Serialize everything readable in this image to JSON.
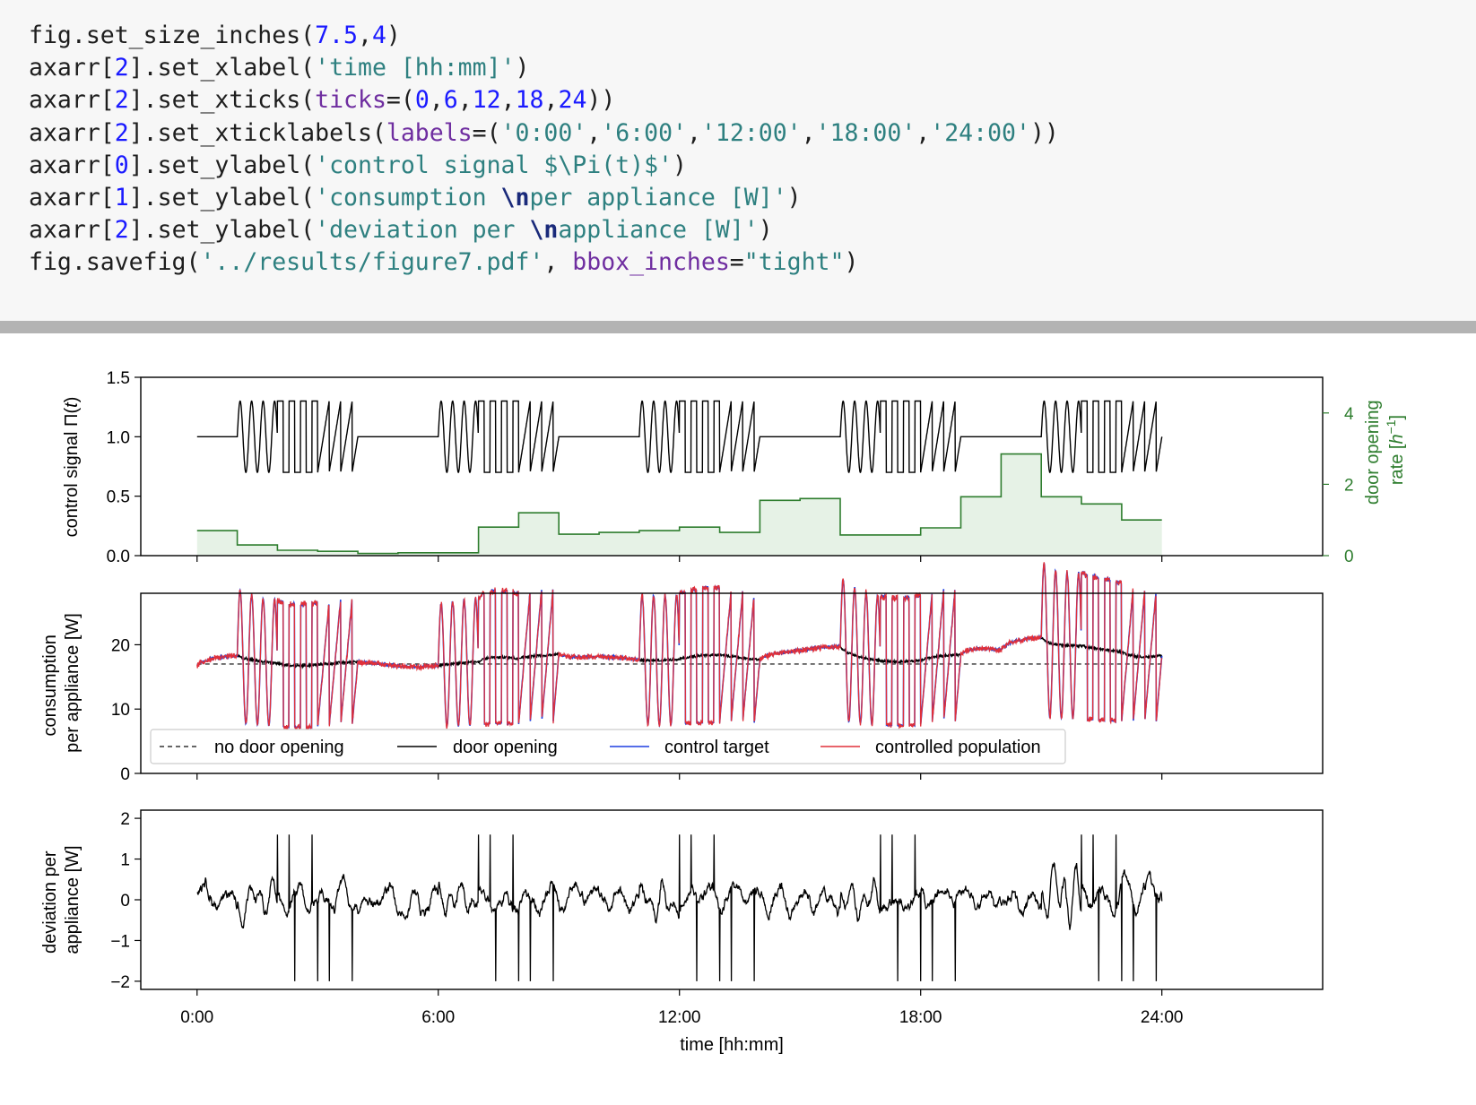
{
  "code_cell": {
    "lines": [
      [
        {
          "t": "fig.set_size_inches("
        },
        {
          "t": "7.5",
          "c": "num"
        },
        {
          "t": ","
        },
        {
          "t": "4",
          "c": "num"
        },
        {
          "t": ")"
        }
      ],
      [
        {
          "t": "axarr["
        },
        {
          "t": "2",
          "c": "num"
        },
        {
          "t": "].set_xlabel("
        },
        {
          "t": "'time [hh:mm]'",
          "c": "str"
        },
        {
          "t": ")"
        }
      ],
      [
        {
          "t": "axarr["
        },
        {
          "t": "2",
          "c": "num"
        },
        {
          "t": "].set_xticks("
        },
        {
          "t": "ticks",
          "c": "kw"
        },
        {
          "t": "=("
        },
        {
          "t": "0",
          "c": "num"
        },
        {
          "t": ","
        },
        {
          "t": "6",
          "c": "num"
        },
        {
          "t": ","
        },
        {
          "t": "12",
          "c": "num"
        },
        {
          "t": ","
        },
        {
          "t": "18",
          "c": "num"
        },
        {
          "t": ","
        },
        {
          "t": "24",
          "c": "num"
        },
        {
          "t": "))"
        }
      ],
      [
        {
          "t": "axarr["
        },
        {
          "t": "2",
          "c": "num"
        },
        {
          "t": "].set_xticklabels("
        },
        {
          "t": "labels",
          "c": "kw"
        },
        {
          "t": "=("
        },
        {
          "t": "'0:00'",
          "c": "str"
        },
        {
          "t": ","
        },
        {
          "t": "'6:00'",
          "c": "str"
        },
        {
          "t": ","
        },
        {
          "t": "'12:00'",
          "c": "str"
        },
        {
          "t": ","
        },
        {
          "t": "'18:00'",
          "c": "str"
        },
        {
          "t": ","
        },
        {
          "t": "'24:00'",
          "c": "str"
        },
        {
          "t": "))"
        }
      ],
      [
        {
          "t": "axarr["
        },
        {
          "t": "0",
          "c": "num"
        },
        {
          "t": "].set_ylabel("
        },
        {
          "t": "'control signal $\\Pi(t)$'",
          "c": "str"
        },
        {
          "t": ")"
        }
      ],
      [
        {
          "t": "axarr["
        },
        {
          "t": "1",
          "c": "num"
        },
        {
          "t": "].set_ylabel("
        },
        {
          "t": "'consumption ",
          "c": "str"
        },
        {
          "t": "\\n",
          "c": "esc"
        },
        {
          "t": "per appliance [W]'",
          "c": "str"
        },
        {
          "t": ")"
        }
      ],
      [
        {
          "t": "axarr["
        },
        {
          "t": "2",
          "c": "num"
        },
        {
          "t": "].set_ylabel("
        },
        {
          "t": "'deviation per ",
          "c": "str"
        },
        {
          "t": "\\n",
          "c": "esc"
        },
        {
          "t": "appliance [W]'",
          "c": "str"
        },
        {
          "t": ")"
        }
      ],
      [
        {
          "t": "fig.savefig("
        },
        {
          "t": "'../results/figure7.pdf'",
          "c": "str"
        },
        {
          "t": ", "
        },
        {
          "t": "bbox_inches",
          "c": "kw"
        },
        {
          "t": "="
        },
        {
          "t": "\"tight\"",
          "c": "str"
        },
        {
          "t": ")"
        }
      ]
    ]
  },
  "colors": {
    "signal": "#000000",
    "door_rate": "#2e7d2e",
    "door_fill": "#e6f2e6",
    "control_target": "#1f3fe0",
    "controlled_population": "#e0303a",
    "no_door_opening": "#333333"
  },
  "chart_data": [
    {
      "type": "line",
      "panel": "control signal",
      "ylabel": "control signal Π(t)",
      "ylabel_plain": "control signal Π(",
      "ylabel_var": "t",
      "ylabel_close": ")",
      "xlim": [
        -1.4,
        28.0
      ],
      "ylim": [
        0,
        1.5
      ],
      "yticks": [
        0.0,
        0.5,
        1.0,
        1.5
      ],
      "ytick_labels": [
        "0.0",
        "0.5",
        "1.0",
        "1.5"
      ],
      "xticks": [
        0,
        6,
        12,
        18,
        24
      ],
      "series": [
        {
          "name": "control signal",
          "pattern": "per 5 h block: 1.0 baseline, sine burst, square burst, sawtooth burst; amplitude 0.3",
          "block_starts": [
            0,
            5,
            10,
            15,
            20
          ],
          "baseline": 1.0,
          "amplitude": 0.3
        }
      ],
      "secondary_axis": {
        "ylabel": "door opening rate [h⁻¹]",
        "ylabel_line1": "door opening",
        "ylabel_line2": "rate [",
        "ylim": [
          0,
          5
        ],
        "yticks": [
          0,
          2,
          4
        ],
        "ytick_labels": [
          "0",
          "2",
          "4"
        ],
        "step_hours": [
          0,
          1,
          2,
          3,
          4,
          5,
          6,
          7,
          8,
          9,
          10,
          11,
          12,
          13,
          14,
          15,
          16,
          17,
          18,
          19,
          20,
          21,
          22,
          23
        ],
        "step_values": [
          0.7,
          0.3,
          0.15,
          0.12,
          0.06,
          0.08,
          0.08,
          0.8,
          1.2,
          0.6,
          0.65,
          0.7,
          0.8,
          0.65,
          1.55,
          1.6,
          0.58,
          0.58,
          0.78,
          1.65,
          2.85,
          1.65,
          1.45,
          1.0
        ]
      }
    },
    {
      "type": "line",
      "panel": "consumption",
      "ylabel_line1": "consumption",
      "ylabel_line2": "per appliance [W]",
      "xlim": [
        -1.4,
        28.0
      ],
      "ylim": [
        0,
        28
      ],
      "yticks": [
        0,
        10,
        20
      ],
      "ytick_labels": [
        "0",
        "10",
        "20"
      ],
      "xticks": [
        0,
        6,
        12,
        18,
        24
      ],
      "series": [
        {
          "name": "no door opening",
          "value": 17.0,
          "style": "dashed"
        },
        {
          "name": "door opening",
          "style": "solid"
        },
        {
          "name": "control target",
          "style": "solid"
        },
        {
          "name": "controlled population",
          "style": "solid"
        }
      ],
      "legend": {
        "placement": "lower-left",
        "entries": [
          "no door opening",
          "door opening",
          "control target",
          "controlled population"
        ]
      }
    },
    {
      "type": "line",
      "panel": "deviation",
      "ylabel_line1": "deviation per",
      "ylabel_line2": "appliance [W]",
      "xlabel": "time [hh:mm]",
      "xlim": [
        -1.4,
        28.0
      ],
      "ylim": [
        -2.2,
        2.2
      ],
      "yticks": [
        -2,
        -1,
        0,
        1,
        2
      ],
      "ytick_labels": [
        "−2",
        "−1",
        "0",
        "1",
        "2"
      ],
      "xticks": [
        0,
        6,
        12,
        18,
        24
      ],
      "xtick_labels": [
        "0:00",
        "6:00",
        "12:00",
        "18:00",
        "24:00"
      ],
      "series": [
        {
          "name": "deviation",
          "style": "solid"
        }
      ]
    }
  ]
}
